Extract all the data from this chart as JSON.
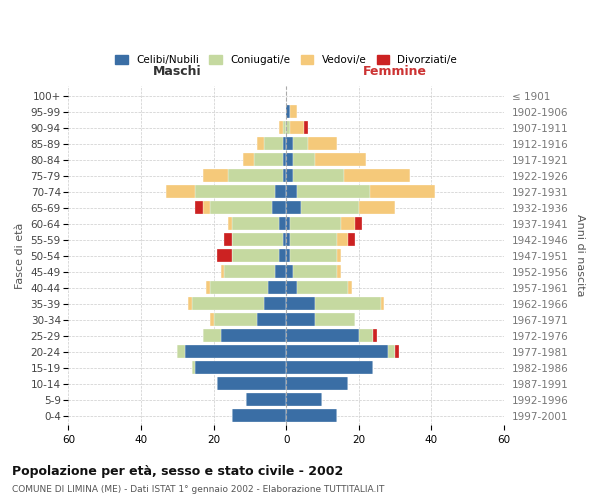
{
  "age_groups": [
    "0-4",
    "5-9",
    "10-14",
    "15-19",
    "20-24",
    "25-29",
    "30-34",
    "35-39",
    "40-44",
    "45-49",
    "50-54",
    "55-59",
    "60-64",
    "65-69",
    "70-74",
    "75-79",
    "80-84",
    "85-89",
    "90-94",
    "95-99",
    "100+"
  ],
  "birth_years": [
    "1997-2001",
    "1992-1996",
    "1987-1991",
    "1982-1986",
    "1977-1981",
    "1972-1976",
    "1967-1971",
    "1962-1966",
    "1957-1961",
    "1952-1956",
    "1947-1951",
    "1942-1946",
    "1937-1941",
    "1932-1936",
    "1927-1931",
    "1922-1926",
    "1917-1921",
    "1912-1916",
    "1907-1911",
    "1902-1906",
    "≤ 1901"
  ],
  "maschi": {
    "celibi": [
      15,
      11,
      19,
      25,
      28,
      18,
      8,
      6,
      5,
      3,
      2,
      1,
      2,
      4,
      3,
      1,
      1,
      1,
      0,
      0,
      0
    ],
    "coniugati": [
      0,
      0,
      0,
      1,
      2,
      5,
      12,
      20,
      16,
      14,
      13,
      14,
      13,
      17,
      22,
      15,
      8,
      5,
      1,
      0,
      0
    ],
    "vedovi": [
      0,
      0,
      0,
      0,
      0,
      0,
      1,
      1,
      1,
      1,
      0,
      0,
      1,
      2,
      8,
      7,
      3,
      2,
      1,
      0,
      0
    ],
    "divorziati": [
      0,
      0,
      0,
      0,
      0,
      0,
      0,
      0,
      0,
      0,
      4,
      2,
      0,
      2,
      0,
      0,
      0,
      0,
      0,
      0,
      0
    ]
  },
  "femmine": {
    "nubili": [
      14,
      10,
      17,
      24,
      28,
      20,
      8,
      8,
      3,
      2,
      1,
      1,
      1,
      4,
      3,
      2,
      2,
      2,
      0,
      1,
      0
    ],
    "coniugate": [
      0,
      0,
      0,
      0,
      2,
      4,
      11,
      18,
      14,
      12,
      13,
      13,
      14,
      16,
      20,
      14,
      6,
      4,
      1,
      0,
      0
    ],
    "vedove": [
      0,
      0,
      0,
      0,
      0,
      0,
      0,
      1,
      1,
      1,
      1,
      3,
      4,
      10,
      18,
      18,
      14,
      8,
      4,
      2,
      0
    ],
    "divorziate": [
      0,
      0,
      0,
      0,
      1,
      1,
      0,
      0,
      0,
      0,
      0,
      2,
      2,
      0,
      0,
      0,
      0,
      0,
      1,
      0,
      0
    ]
  },
  "colors": {
    "celibi": "#3a6ea5",
    "coniugati": "#c5d9a0",
    "vedovi": "#f5c97a",
    "divorziati": "#cc2222"
  },
  "title": "Popolazione per età, sesso e stato civile - 2002",
  "subtitle": "COMUNE DI LIMINA (ME) - Dati ISTAT 1° gennaio 2002 - Elaborazione TUTTITALIA.IT",
  "xlabel_left": "Maschi",
  "xlabel_right": "Femmine",
  "ylabel_left": "Fasce di età",
  "ylabel_right": "Anni di nascita",
  "xlim": 60,
  "legend_labels": [
    "Celibi/Nubili",
    "Coniugati/e",
    "Vedovi/e",
    "Divorziati/e"
  ],
  "background_color": "#ffffff",
  "grid_color": "#cccccc"
}
